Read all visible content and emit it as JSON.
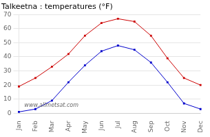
{
  "chart_data": {
    "type": "line",
    "title": "Talkeetna : temperatures (°F)",
    "categories": [
      "Jan",
      "Feb",
      "Mar",
      "Apr",
      "May",
      "Jun",
      "Jul",
      "Aug",
      "Sep",
      "Oct",
      "Nov",
      "Dec"
    ],
    "series": [
      {
        "color": "#cc0000",
        "values": [
          19,
          25,
          33,
          42,
          55,
          64,
          67,
          65,
          55,
          39,
          25,
          20
        ]
      },
      {
        "color": "#0000cc",
        "values": [
          1,
          3,
          9,
          22,
          34,
          44,
          48,
          45,
          36,
          22,
          7,
          3
        ]
      }
    ],
    "ylim": [
      0,
      70
    ],
    "yticks": [
      0,
      10,
      20,
      30,
      40,
      50,
      60,
      70
    ],
    "grid": true,
    "marker": "square",
    "line_style": "solid",
    "annotation": "www.allmetsat.com"
  }
}
